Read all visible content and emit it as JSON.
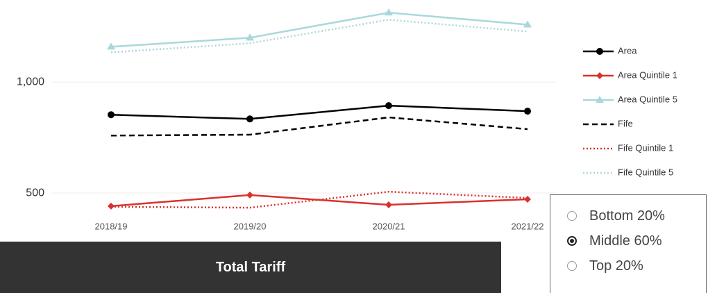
{
  "chart_data": {
    "type": "line",
    "categories": [
      "2018/19",
      "2019/20",
      "2020/21",
      "2021/22"
    ],
    "series": [
      {
        "name": "Area",
        "color": "#000000",
        "dash": "solid",
        "marker": "circle",
        "values": [
          853,
          834,
          894,
          869
        ]
      },
      {
        "name": "Area Quintile 1",
        "color": "#d9322b",
        "dash": "solid",
        "marker": "diamond",
        "values": [
          441,
          491,
          447,
          472
        ]
      },
      {
        "name": "Area Quintile 5",
        "color": "#a8d8dc",
        "dash": "solid",
        "marker": "triangle",
        "values": [
          1159,
          1200,
          1313,
          1259
        ]
      },
      {
        "name": "Fife",
        "color": "#000000",
        "dash": "dashed",
        "marker": null,
        "values": [
          759,
          763,
          841,
          788
        ]
      },
      {
        "name": "Fife Quintile 1",
        "color": "#d9322b",
        "dash": "dotted",
        "marker": null,
        "values": [
          438,
          434,
          506,
          478
        ]
      },
      {
        "name": "Fife Quintile 5",
        "color": "#a8d8dc",
        "dash": "dotted",
        "marker": null,
        "values": [
          1134,
          1175,
          1281,
          1228
        ]
      }
    ],
    "ylim": [
      400,
      1370
    ],
    "yticks": [
      500,
      {
        "value": 1000,
        "label": "1,000"
      }
    ],
    "grid": true,
    "legend": "right"
  },
  "panel": {
    "title": "Total Tariff"
  },
  "filter": {
    "options": [
      "Bottom 20%",
      "Middle 60%",
      "Top 20%"
    ],
    "selected": 1
  }
}
